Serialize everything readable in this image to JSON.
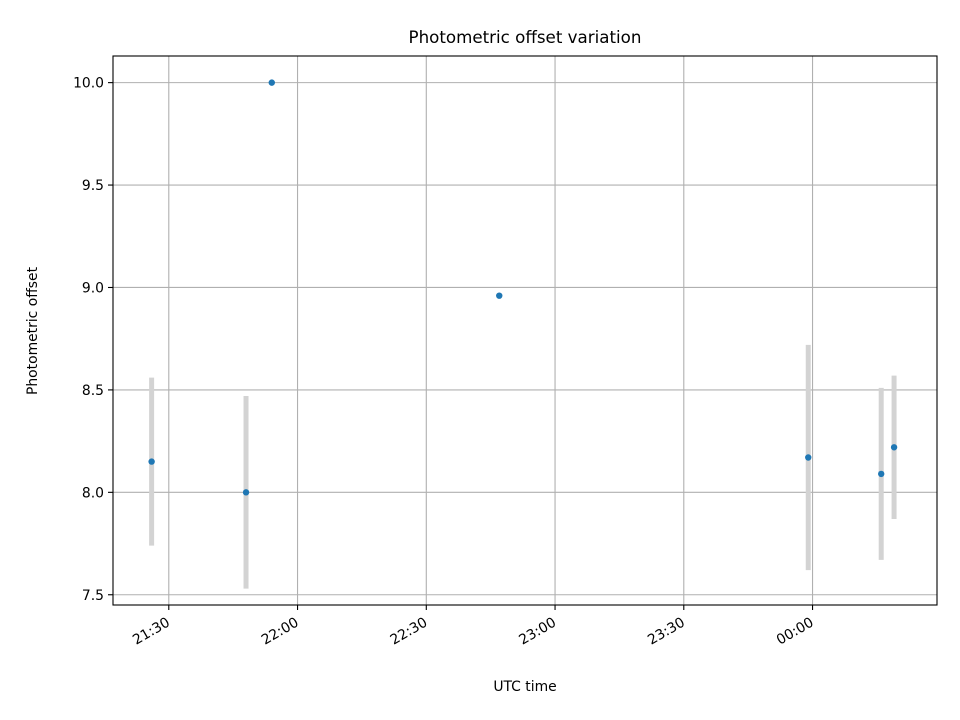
{
  "chart_data": {
    "type": "scatter",
    "title": "Photometric offset variation",
    "xlabel": "UTC time",
    "ylabel": "Photometric offset",
    "x_axis_type": "time",
    "x_ticks": [
      "21:30",
      "22:00",
      "22:30",
      "23:00",
      "23:30",
      "00:00"
    ],
    "y_ticks": [
      "7.5",
      "8.0",
      "8.5",
      "9.0",
      "9.5",
      "10.0"
    ],
    "xlim": [
      "21:17",
      "00:29"
    ],
    "ylim": [
      7.45,
      10.13
    ],
    "grid": true,
    "legend": "none",
    "colors": {
      "points": "#1f77b4",
      "errorbars": "#d3d3d3",
      "grid": "#b0b0b0"
    },
    "series": [
      {
        "points": [
          {
            "x": "21:26",
            "y": 8.15,
            "yerr": 0.41
          },
          {
            "x": "21:48",
            "y": 8.0,
            "yerr": 0.47
          },
          {
            "x": "21:54",
            "y": 10.0,
            "yerr": null
          },
          {
            "x": "22:47",
            "y": 8.96,
            "yerr": null
          },
          {
            "x": "23:59",
            "y": 8.17,
            "yerr": 0.55
          },
          {
            "x": "00:16",
            "y": 8.09,
            "yerr": 0.42
          },
          {
            "x": "00:19",
            "y": 8.22,
            "yerr": 0.35
          }
        ]
      }
    ]
  }
}
